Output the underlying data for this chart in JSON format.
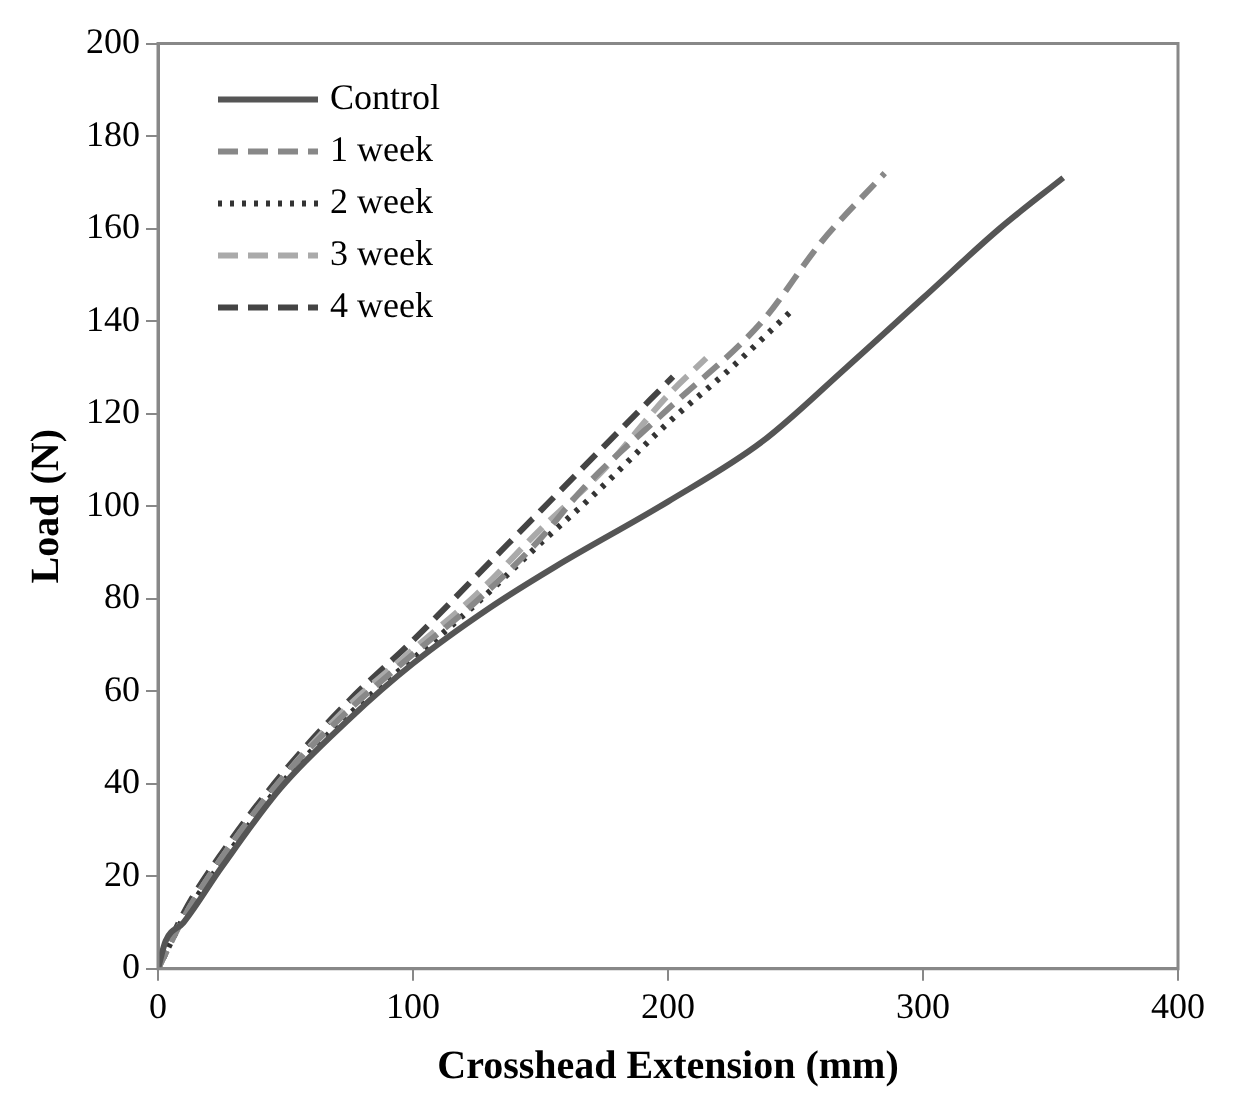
{
  "chart_data": {
    "type": "line",
    "xlabel": "Crosshead Extension (mm)",
    "ylabel": "Load (N)",
    "xlim": [
      0,
      400
    ],
    "xticks": [
      0,
      100,
      200,
      300,
      400
    ],
    "ylim": [
      0,
      200
    ],
    "yticks": [
      0,
      20,
      40,
      60,
      80,
      100,
      120,
      140,
      160,
      180,
      200
    ],
    "grid": false,
    "legend": "top left",
    "marker": "none",
    "series": [
      {
        "name": "Control",
        "color": "#555555",
        "line_style": "solid",
        "x": [
          0,
          3,
          10,
          25,
          48,
          75,
          100,
          130,
          156,
          200,
          237,
          270,
          300,
          330,
          355
        ],
        "values": [
          0,
          6,
          10,
          22,
          39,
          54,
          66,
          78,
          87,
          101,
          114,
          130,
          145,
          160,
          171
        ]
      },
      {
        "name": "1 week",
        "color": "#888888",
        "line_style": "dashed",
        "x": [
          0,
          10,
          25,
          50,
          75,
          100,
          124,
          150,
          167,
          200,
          237,
          260,
          285
        ],
        "values": [
          0,
          11,
          24,
          42,
          56,
          68,
          79,
          93,
          104,
          121,
          140,
          157,
          172
        ]
      },
      {
        "name": "2 week",
        "color": "#333333",
        "line_style": "dotted",
        "x": [
          0,
          10,
          25,
          50,
          75,
          100,
          125,
          150,
          170,
          200,
          225,
          248
        ],
        "values": [
          0,
          11,
          23,
          41,
          55,
          67,
          79,
          92,
          102,
          118,
          130,
          142
        ]
      },
      {
        "name": "3 week",
        "color": "#aaaaaa",
        "line_style": "dashed",
        "x": [
          0,
          10,
          25,
          50,
          75,
          100,
          125,
          150,
          175,
          200,
          215
        ],
        "values": [
          0,
          11,
          24,
          42,
          57,
          69,
          81,
          95,
          108,
          124,
          132
        ]
      },
      {
        "name": "4 week",
        "color": "#444444",
        "line_style": "dashed",
        "x": [
          0,
          10,
          25,
          50,
          75,
          100,
          125,
          150,
          175,
          202
        ],
        "values": [
          0,
          12,
          25,
          43,
          58,
          71,
          85,
          99,
          113,
          128
        ]
      }
    ]
  }
}
